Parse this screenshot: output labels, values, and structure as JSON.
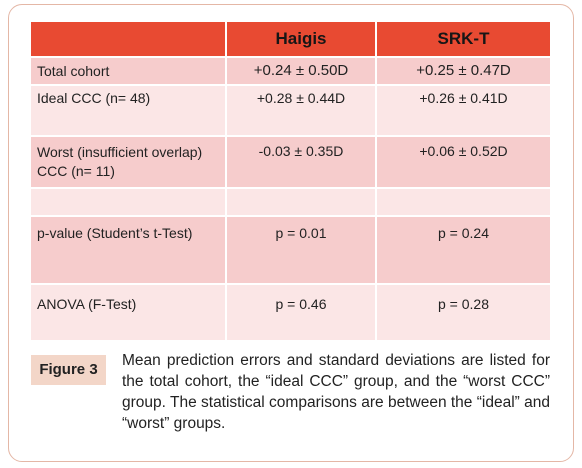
{
  "table": {
    "headers": [
      "",
      "Haigis",
      "SRK-T"
    ],
    "rows": [
      {
        "label": "Total cohort",
        "haigis": "+0.24 ± 0.50D",
        "srkt": "+0.25 ± 0.47D"
      },
      {
        "label": "Ideal CCC (n= 48)",
        "haigis": "+0.28 ± 0.44D",
        "srkt": "+0.26 ± 0.41D"
      },
      {
        "label": "Worst (insufficient overlap) CCC (n= 11)",
        "haigis": "-0.03 ± 0.35D",
        "srkt": "+0.06 ± 0.52D"
      },
      {
        "label": "",
        "haigis": "",
        "srkt": ""
      },
      {
        "label": "p-value (Student’s t-Test)",
        "haigis": "p = 0.01",
        "srkt": "p = 0.24"
      },
      {
        "label": "ANOVA (F-Test)",
        "haigis": "p = 0.46",
        "srkt": "p = 0.28"
      }
    ]
  },
  "caption": {
    "label": "Figure 3",
    "text": "Mean prediction errors and standard deviations are listed for the total cohort, the “ideal CCC” group, and the “worst CCC” group.  The statistical comparisons are between the “ideal” and “worst” groups."
  },
  "colors": {
    "header": "#e84a32",
    "row_dark": "#f6cccc",
    "row_light": "#fbe6e6",
    "badge": "#f3d6c8",
    "border": "#e4b7a6"
  }
}
